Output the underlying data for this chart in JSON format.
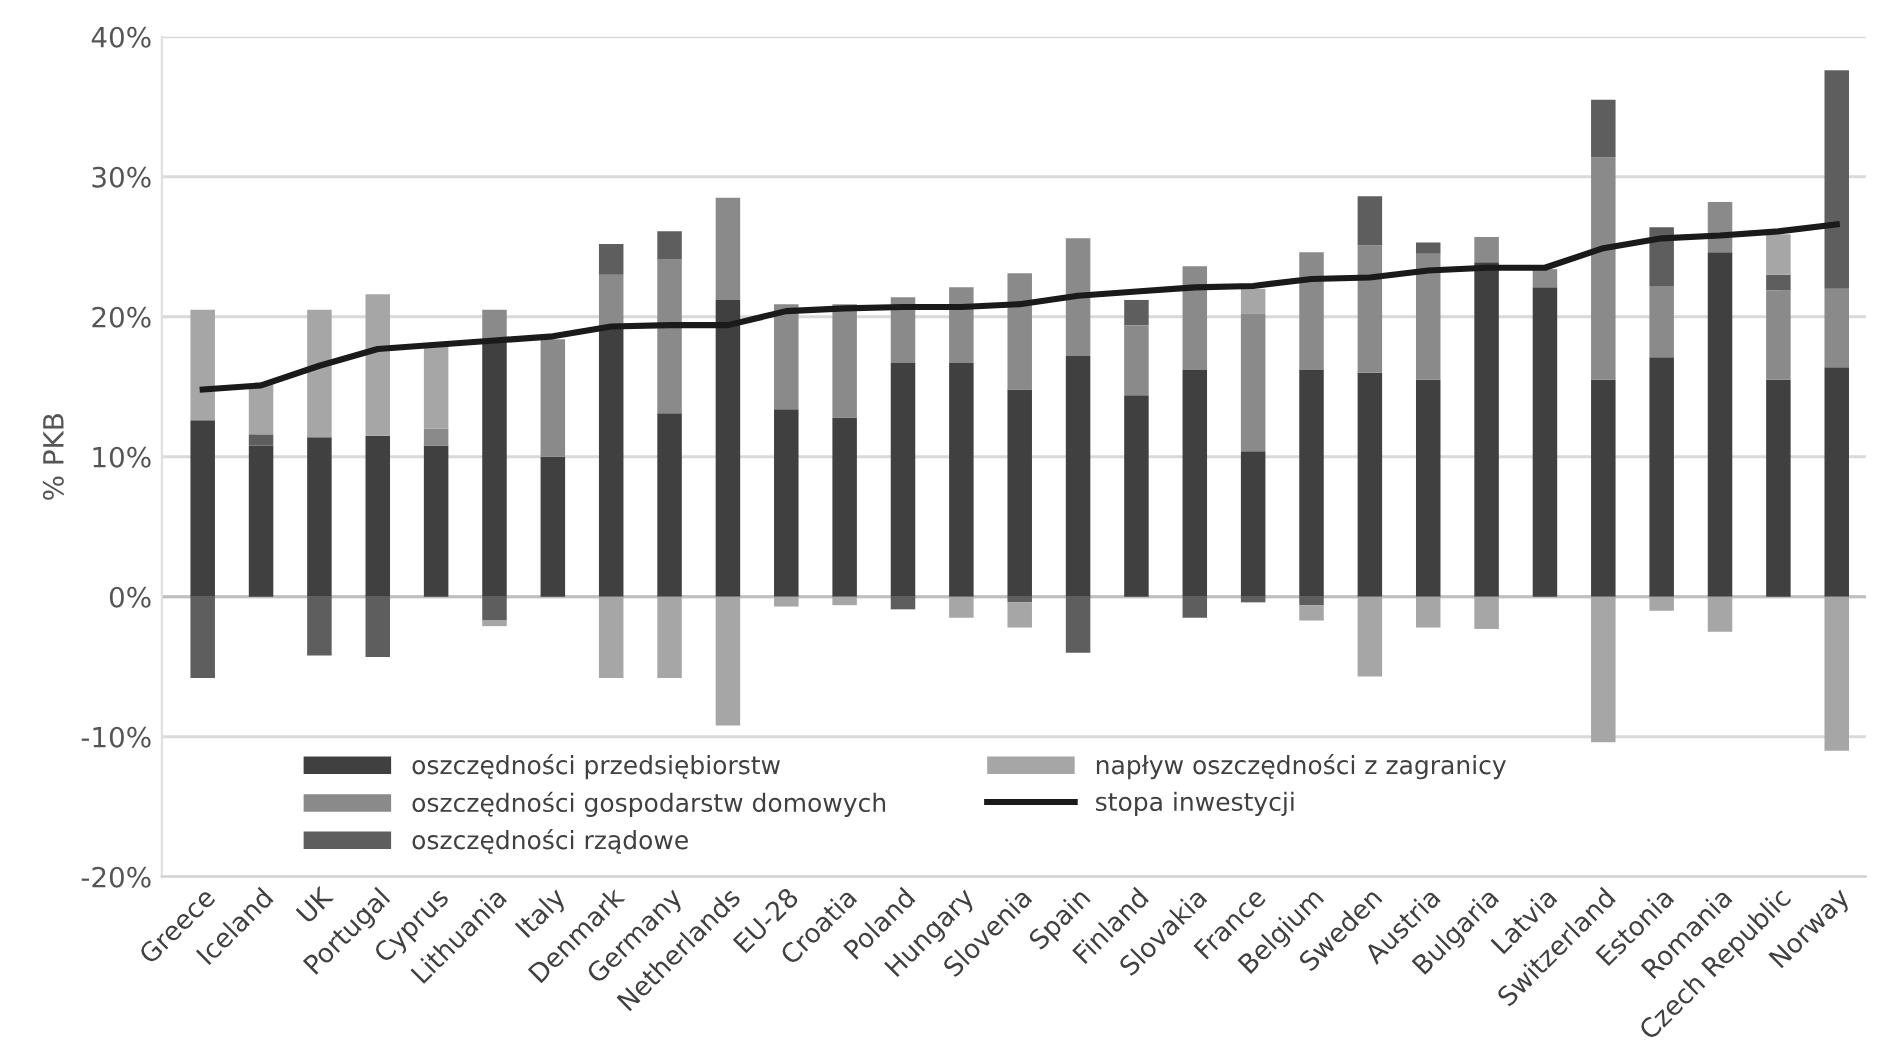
{
  "chart_data": {
    "type": "bar",
    "stacked": true,
    "ylabel": "% PKB",
    "categories": [
      "Greece",
      "Iceland",
      "UK",
      "Portugal",
      "Cyprus",
      "Lithuania",
      "Italy",
      "Denmark",
      "Germany",
      "Netherlands",
      "EU-28",
      "Croatia",
      "Poland",
      "Hungary",
      "Slovenia",
      "Spain",
      "Finland",
      "Slovakia",
      "France",
      "Belgium",
      "Sweden",
      "Austria",
      "Bulgaria",
      "Latvia",
      "Switzerland",
      "Estonia",
      "Romania",
      "Czech Republic",
      "Norway"
    ],
    "series": [
      {
        "name": "oszczędności przedsiębiorstw",
        "color": "#404040",
        "values": [
          12.6,
          10.8,
          11.4,
          11.5,
          10.8,
          18.4,
          10.0,
          19.4,
          13.1,
          21.2,
          13.4,
          12.8,
          16.7,
          16.7,
          14.8,
          17.2,
          14.4,
          16.2,
          10.4,
          16.2,
          16.0,
          15.5,
          23.9,
          22.1,
          15.5,
          17.1,
          24.6,
          15.5,
          16.4
        ]
      },
      {
        "name": "oszczędności gospodarstw domowych",
        "color": "#8a8a8a",
        "values": [
          0,
          0,
          0,
          0,
          1.2,
          2.1,
          8.4,
          3.6,
          11.0,
          7.3,
          7.5,
          8.1,
          4.7,
          5.4,
          8.3,
          8.4,
          5.0,
          7.4,
          9.8,
          8.4,
          9.1,
          9.0,
          1.8,
          1.3,
          15.9,
          5.1,
          3.6,
          6.4,
          5.6
        ]
      },
      {
        "name": "oszczędności rządowe",
        "color": "#5e5e5e",
        "values": [
          -5.8,
          0.8,
          -4.2,
          -4.3,
          0,
          -1.7,
          0,
          2.2,
          2.0,
          0,
          0,
          0,
          -0.9,
          0,
          -0.4,
          -4.0,
          1.8,
          -1.5,
          -0.4,
          -0.6,
          3.5,
          0.8,
          0,
          0,
          4.1,
          4.2,
          0,
          1.1,
          15.6
        ]
      },
      {
        "name": "napływ oszczędności z zagranicy",
        "color": "#a6a6a6",
        "values": [
          7.9,
          3.6,
          9.1,
          10.1,
          6.0,
          -0.4,
          0,
          -5.8,
          -5.8,
          -9.2,
          -0.7,
          -0.6,
          0,
          -1.5,
          -1.8,
          0,
          0,
          0,
          1.8,
          -1.1,
          -5.7,
          -2.2,
          -2.3,
          0,
          -10.4,
          -1.0,
          -2.5,
          2.9,
          -11.0
        ]
      },
      {
        "name": "stopa inwestycji",
        "type": "line",
        "color": "#1a1a1a",
        "values": [
          14.8,
          15.1,
          16.5,
          17.7,
          18.0,
          18.3,
          18.6,
          19.3,
          19.4,
          19.4,
          20.4,
          20.6,
          20.7,
          20.7,
          20.9,
          21.5,
          21.8,
          22.1,
          22.2,
          22.7,
          22.8,
          23.3,
          23.5,
          23.5,
          24.9,
          25.6,
          25.8,
          26.1,
          26.6
        ]
      }
    ],
    "ylim": [
      -20,
      40
    ],
    "yticks": [
      {
        "value": -20,
        "label": "-20%"
      },
      {
        "value": -10,
        "label": "-10%"
      },
      {
        "value": 0,
        "label": "0%"
      },
      {
        "value": 10,
        "label": "10%"
      },
      {
        "value": 20,
        "label": "20%"
      },
      {
        "value": 30,
        "label": "30%"
      },
      {
        "value": 40,
        "label": "40%"
      }
    ],
    "grid": "y",
    "legend": "bottom"
  }
}
